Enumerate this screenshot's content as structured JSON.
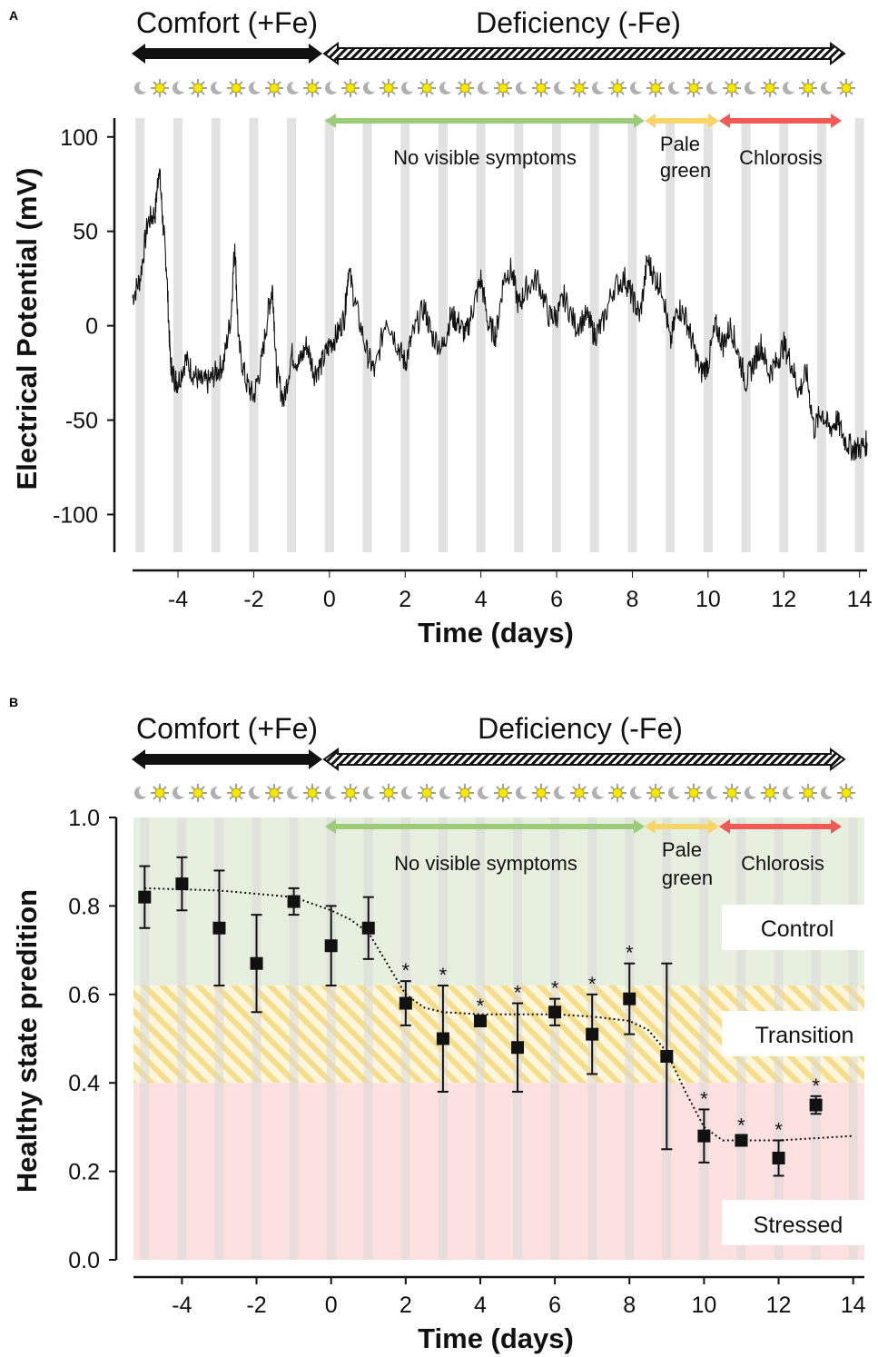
{
  "panels": {
    "a": {
      "letter": "A",
      "header": {
        "left": "Comfort (+Fe)",
        "right": "Deficiency (-Fe)"
      },
      "phases": [
        {
          "label": "No visible symptoms",
          "color": "#9ccc7a"
        },
        {
          "label": "Pale\ngreen",
          "color": "#f7d56a"
        },
        {
          "label": "Chlorosis",
          "color": "#f25a55"
        }
      ]
    },
    "b": {
      "letter": "B",
      "header": {
        "left": "Comfort (+Fe)",
        "right": "Deficiency (-Fe)"
      },
      "phases": [
        {
          "label": "No visible symptoms",
          "color": "#9ccc7a"
        },
        {
          "label": "Pale\ngreen",
          "color": "#f7d56a"
        },
        {
          "label": "Chlorosis",
          "color": "#f25a55"
        }
      ],
      "zones": [
        {
          "label": "Control",
          "range": [
            0.62,
            1.0
          ],
          "color": "#e7f0df"
        },
        {
          "label": "Transition",
          "range": [
            0.4,
            0.62
          ],
          "color": "#f8e7a6"
        },
        {
          "label": "Stressed",
          "range": [
            0.0,
            0.4
          ],
          "color": "#fde0e0"
        }
      ]
    }
  },
  "chart_data": [
    {
      "type": "line",
      "xlabel": "Time (days)",
      "ylabel": "Electrical Potential (mV)",
      "xlim": [
        -5.2,
        14.2
      ],
      "ylim": [
        -120,
        110
      ],
      "xticks": [
        -4,
        -2,
        0,
        2,
        4,
        6,
        8,
        10,
        12,
        14
      ],
      "yticks": [
        -100,
        -50,
        0,
        50,
        100
      ],
      "series": [
        {
          "x": [
            -5.2,
            -5.0,
            -4.8,
            -4.6,
            -4.5,
            -4.4,
            -4.3,
            -4.2,
            -4.1,
            -4.0,
            -3.8,
            -3.6,
            -3.4,
            -3.2,
            -3.0,
            -2.8,
            -2.6,
            -2.5,
            -2.4,
            -2.2,
            -2.0,
            -1.8,
            -1.6,
            -1.5,
            -1.4,
            -1.2,
            -1.0,
            -0.8,
            -0.6,
            -0.4,
            -0.2,
            0.0,
            0.2,
            0.4,
            0.5,
            0.7,
            1.0,
            1.2,
            1.5,
            1.8,
            2.0,
            2.2,
            2.5,
            2.7,
            3.0,
            3.2,
            3.4,
            3.6,
            3.8,
            4.0,
            4.2,
            4.4,
            4.6,
            4.8,
            5.0,
            5.2,
            5.5,
            5.8,
            6.0,
            6.2,
            6.5,
            6.8,
            7.0,
            7.2,
            7.5,
            7.8,
            8.0,
            8.2,
            8.4,
            8.6,
            8.8,
            9.0,
            9.2,
            9.4,
            9.6,
            9.8,
            10.0,
            10.2,
            10.4,
            10.6,
            10.8,
            11.0,
            11.2,
            11.4,
            11.6,
            11.8,
            12.0,
            12.2,
            12.4,
            12.6,
            12.8,
            13.0,
            13.2,
            13.4,
            13.6,
            13.8,
            14.0,
            14.2
          ],
          "values": [
            15,
            25,
            55,
            60,
            85,
            55,
            30,
            -20,
            -28,
            -30,
            -18,
            -25,
            -30,
            -30,
            -25,
            -20,
            5,
            45,
            -10,
            -30,
            -38,
            -20,
            10,
            20,
            -25,
            -40,
            -15,
            -20,
            -10,
            -25,
            -20,
            -10,
            -5,
            5,
            30,
            10,
            -15,
            -25,
            5,
            -10,
            -20,
            -5,
            10,
            -5,
            -12,
            5,
            2,
            -5,
            10,
            25,
            0,
            -5,
            25,
            30,
            10,
            20,
            25,
            5,
            5,
            15,
            0,
            5,
            -5,
            0,
            20,
            25,
            15,
            5,
            35,
            25,
            20,
            -10,
            10,
            5,
            -10,
            -25,
            -20,
            0,
            -10,
            0,
            -15,
            -30,
            -20,
            -10,
            -25,
            -20,
            -10,
            -20,
            -35,
            -25,
            -55,
            -45,
            -55,
            -50,
            -60,
            -65,
            -65,
            -62
          ]
        }
      ]
    },
    {
      "type": "scatter",
      "xlabel": "Time (days)",
      "ylabel": "Healthy state predition",
      "xlim": [
        -5.3,
        14.3
      ],
      "ylim": [
        0,
        1.0
      ],
      "xticks": [
        -4,
        -2,
        0,
        2,
        4,
        6,
        8,
        10,
        12,
        14
      ],
      "yticks": [
        0.0,
        0.2,
        0.4,
        0.6,
        0.8,
        1.0
      ],
      "ytick_labels": [
        "0.0",
        "0.2",
        "0.4",
        "0.6",
        "0.8",
        "1.0"
      ],
      "series": [
        {
          "x": [
            -5,
            -4,
            -3,
            -2,
            -1,
            0,
            1,
            2,
            3,
            4,
            5,
            6,
            7,
            8,
            9,
            10,
            11,
            12,
            13
          ],
          "values": [
            0.82,
            0.85,
            0.75,
            0.67,
            0.81,
            0.71,
            0.75,
            0.58,
            0.5,
            0.54,
            0.48,
            0.56,
            0.51,
            0.59,
            0.46,
            0.28,
            0.27,
            0.23,
            0.35
          ],
          "errors": [
            0.07,
            0.06,
            0.13,
            0.11,
            0.03,
            0.09,
            0.07,
            0.05,
            0.12,
            0.01,
            0.1,
            0.03,
            0.09,
            0.08,
            0.21,
            0.06,
            0.01,
            0.04,
            0.02
          ],
          "significant": [
            false,
            false,
            false,
            false,
            false,
            false,
            false,
            true,
            true,
            true,
            true,
            true,
            true,
            true,
            false,
            true,
            true,
            true,
            true
          ]
        }
      ],
      "annotation_marker": "*",
      "fit_curve": {
        "x": [
          -5,
          -3,
          -1,
          0,
          0.5,
          1,
          1.5,
          2,
          2.5,
          3,
          4,
          5,
          6,
          7,
          8,
          8.5,
          9,
          9.5,
          10,
          10.5,
          11,
          12,
          13,
          14
        ],
        "values": [
          0.84,
          0.835,
          0.82,
          0.79,
          0.77,
          0.74,
          0.67,
          0.6,
          0.57,
          0.56,
          0.555,
          0.555,
          0.555,
          0.55,
          0.54,
          0.52,
          0.47,
          0.38,
          0.3,
          0.27,
          0.27,
          0.27,
          0.275,
          0.28
        ]
      }
    }
  ]
}
